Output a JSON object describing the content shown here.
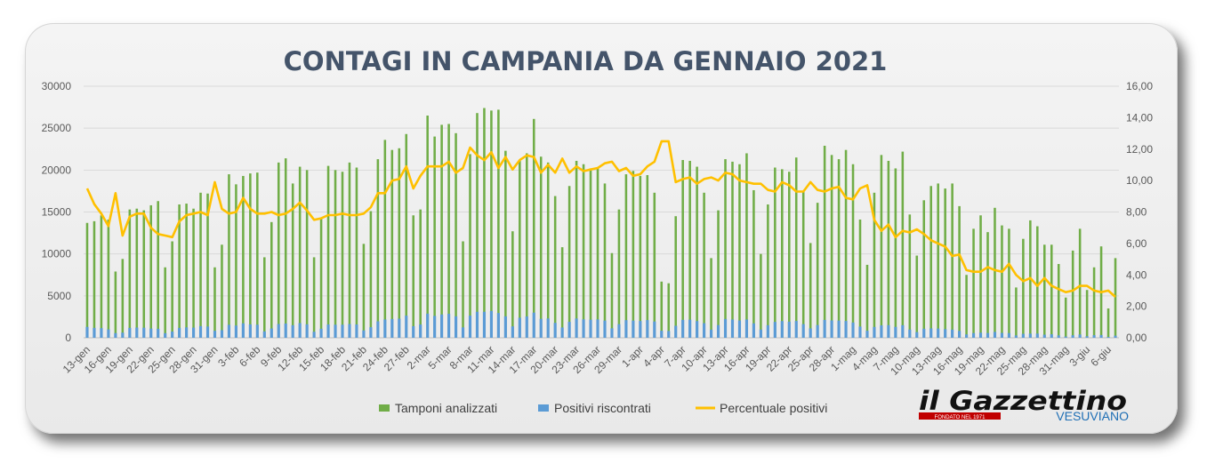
{
  "chart_data": {
    "type": "bar+line",
    "title": "CONTAGI IN CAMPANIA DA GENNAIO 2021",
    "y_left": {
      "min": 0,
      "max": 30000,
      "ticks": [
        "0",
        "5000",
        "10000",
        "15000",
        "20000",
        "25000",
        "30000"
      ]
    },
    "y_right": {
      "min": 0,
      "max": 16,
      "ticks": [
        "0,00",
        "2,00",
        "4,00",
        "6,00",
        "8,00",
        "10,00",
        "12,00",
        "14,00",
        "16,00"
      ]
    },
    "x_tick_labels": [
      "13-gen",
      "16-gen",
      "19-gen",
      "22-gen",
      "25-gen",
      "28-gen",
      "31-gen",
      "3-feb",
      "6-feb",
      "9-feb",
      "12-feb",
      "15-feb",
      "18-feb",
      "21-feb",
      "24-feb",
      "27-feb",
      "2-mar",
      "5-mar",
      "8-mar",
      "11-mar",
      "14-mar",
      "17-mar",
      "20-mar",
      "23-mar",
      "26-mar",
      "29-mar",
      "1-apr",
      "4-apr",
      "7-apr",
      "10-apr",
      "13-apr",
      "16-apr",
      "19-apr",
      "22-apr",
      "25-apr",
      "28-apr",
      "1-mag",
      "4-mag",
      "7-mag",
      "10-mag",
      "13-mag",
      "16-mag",
      "19-mag",
      "22-mag",
      "25-mag",
      "28-mag",
      "31-mag",
      "3-giu",
      "6-giu"
    ],
    "legend": [
      "Tamponi analizzati",
      "Positivi riscontrati",
      "Percentuale positivi"
    ],
    "legend_position": "bottom",
    "colors": {
      "tamponi": "#70ad47",
      "positivi": "#5b9bd5",
      "percentuale": "#ffc000"
    },
    "series": [
      {
        "name": "Tamponi analizzati",
        "axis": "left",
        "values": [
          13700,
          13900,
          14600,
          14100,
          7900,
          9400,
          15300,
          15400,
          15200,
          15800,
          16300,
          8400,
          11500,
          15900,
          16000,
          15400,
          17300,
          17200,
          8400,
          11100,
          19500,
          18300,
          19300,
          19600,
          19700,
          9600,
          13800,
          20900,
          21400,
          18400,
          20400,
          20000,
          9600,
          14200,
          20500,
          20000,
          19800,
          20900,
          20300,
          11200,
          15100,
          21300,
          23600,
          22400,
          22600,
          24300,
          14600,
          15300,
          26500,
          24000,
          25400,
          25500,
          24400,
          11500,
          21900,
          26800,
          27400,
          27100,
          27200,
          22300,
          12700,
          21100,
          22000,
          26100,
          21600,
          20900,
          16900,
          10800,
          18100,
          21100,
          20700,
          20200,
          20200,
          18400,
          10100,
          15300,
          19500,
          19900,
          19300,
          19400,
          17300,
          6700,
          6500,
          14500,
          21200,
          21100,
          20400,
          17300,
          9500,
          15200,
          21300,
          21000,
          20700,
          22000,
          17600,
          10000,
          15900,
          20300,
          20100,
          19800,
          21500,
          17500,
          11300,
          16100,
          22900,
          21800,
          21300,
          22400,
          20700,
          14100,
          8700,
          17300,
          21800,
          21100,
          20200,
          22200,
          14700,
          9800,
          16400,
          18100,
          18400,
          17800,
          18400,
          15700,
          7500,
          13000,
          14600,
          12600,
          15500,
          13400,
          13000,
          6000,
          11800,
          14000,
          13300,
          11100,
          11100,
          8800,
          4800,
          10400,
          13000,
          5700,
          8400,
          10900,
          3500,
          9500
        ]
      },
      {
        "name": "Positivi riscontrati",
        "axis": "left",
        "values": [
          1300,
          1180,
          1150,
          1000,
          560,
          610,
          1180,
          1220,
          1200,
          1100,
          1070,
          550,
          740,
          1180,
          1240,
          1210,
          1390,
          1340,
          830,
          910,
          1550,
          1460,
          1720,
          1600,
          1560,
          760,
          1110,
          1640,
          1700,
          1500,
          1750,
          1610,
          720,
          1080,
          1590,
          1560,
          1560,
          1640,
          1590,
          880,
          1260,
          1960,
          2180,
          2240,
          2280,
          2640,
          1380,
          1580,
          2880,
          2610,
          2780,
          2860,
          2560,
          1240,
          2640,
          3100,
          3100,
          3200,
          2950,
          2560,
          1360,
          2390,
          2550,
          3000,
          2260,
          2300,
          1780,
          1230,
          1900,
          2300,
          2200,
          2160,
          2190,
          2050,
          1130,
          1620,
          2100,
          2050,
          2000,
          2110,
          1940,
          840,
          810,
          1430,
          2140,
          2160,
          1990,
          1740,
          970,
          1520,
          2240,
          2180,
          2060,
          2180,
          1720,
          980,
          1500,
          1890,
          1990,
          1920,
          2000,
          1630,
          1120,
          1520,
          2130,
          2070,
          2050,
          2000,
          1820,
          1340,
          840,
          1290,
          1480,
          1510,
          1300,
          1500,
          980,
          680,
          1080,
          1120,
          1100,
          1030,
          970,
          820,
          400,
          560,
          610,
          570,
          700,
          580,
          560,
          280,
          470,
          500,
          500,
          370,
          420,
          290,
          150,
          300,
          390,
          190,
          310,
          330,
          100,
          250
        ]
      },
      {
        "name": "Percentuale positivi",
        "axis": "right",
        "values": [
          9.5,
          8.5,
          7.9,
          7.1,
          9.2,
          6.5,
          7.7,
          7.9,
          7.9,
          7.0,
          6.6,
          6.5,
          6.4,
          7.4,
          7.8,
          7.9,
          8.0,
          7.8,
          9.9,
          8.2,
          7.9,
          8.0,
          8.9,
          8.2,
          7.9,
          7.9,
          8.0,
          7.8,
          7.9,
          8.2,
          8.6,
          8.1,
          7.5,
          7.6,
          7.8,
          7.8,
          7.9,
          7.8,
          7.8,
          7.9,
          8.3,
          9.2,
          9.2,
          10.0,
          10.1,
          10.9,
          9.5,
          10.3,
          10.9,
          10.9,
          10.9,
          11.2,
          10.5,
          10.8,
          12.1,
          11.6,
          11.3,
          11.8,
          10.8,
          11.5,
          10.7,
          11.3,
          11.6,
          11.5,
          10.5,
          11.0,
          10.5,
          11.4,
          10.5,
          10.9,
          10.6,
          10.7,
          10.8,
          11.1,
          11.2,
          10.6,
          10.8,
          10.3,
          10.4,
          10.9,
          11.2,
          12.5,
          12.5,
          9.9,
          10.1,
          10.2,
          9.8,
          10.1,
          10.2,
          10.0,
          10.5,
          10.4,
          10.0,
          9.9,
          9.8,
          9.8,
          9.4,
          9.3,
          9.9,
          9.7,
          9.3,
          9.3,
          9.9,
          9.4,
          9.3,
          9.5,
          9.6,
          8.9,
          8.8,
          9.5,
          9.7,
          7.5,
          6.8,
          7.2,
          6.4,
          6.8,
          6.7,
          6.9,
          6.6,
          6.2,
          6.0,
          5.8,
          5.2,
          5.3,
          4.3,
          4.2,
          4.2,
          4.5,
          4.3,
          4.2,
          4.7,
          4.0,
          3.6,
          3.8,
          3.3,
          3.8,
          3.3,
          3.1,
          2.9,
          3.0,
          3.3,
          3.3,
          3.0,
          2.9,
          3.0,
          2.6
        ]
      }
    ]
  },
  "logo": {
    "name": "il Gazzettino",
    "sub": "VESUVIANO",
    "tag": "FONDATO NEL 1971"
  }
}
